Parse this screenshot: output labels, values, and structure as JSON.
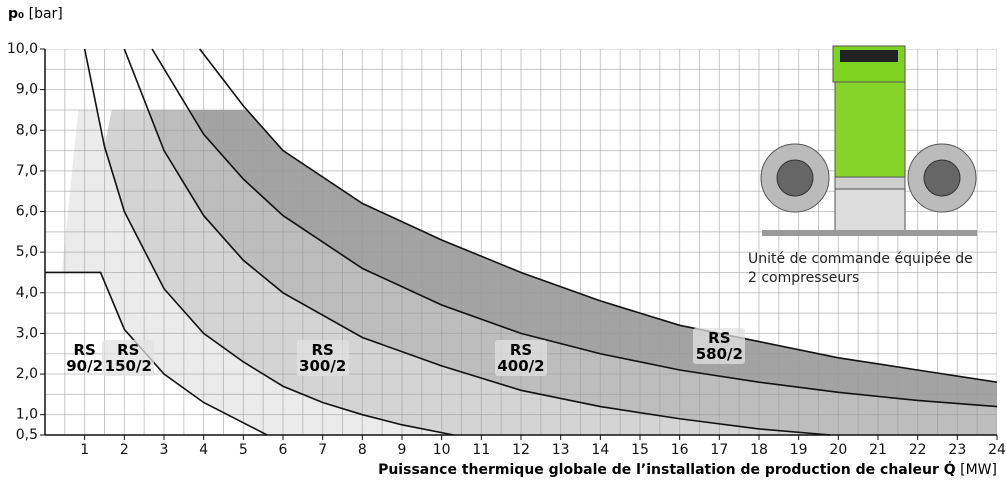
{
  "chart_data": {
    "type": "line",
    "ylabel": "p₀",
    "ylabel_unit": "[bar]",
    "xlabel": "Puissance thermique globale de l’installation de production de chaleur Q̇",
    "xlabel_unit": "[MW]",
    "caption": "Unité de commande équipée de 2 compresseurs",
    "xlim": [
      0,
      24
    ],
    "ylim": [
      0.5,
      10
    ],
    "xticks": [
      1,
      2,
      3,
      4,
      5,
      6,
      7,
      8,
      9,
      10,
      11,
      12,
      13,
      14,
      15,
      16,
      17,
      18,
      19,
      20,
      21,
      22,
      23,
      24
    ],
    "yticks": [
      {
        "value": 0.5,
        "label": "0,5"
      },
      {
        "value": 1,
        "label": "1,0"
      },
      {
        "value": 2,
        "label": "2,0"
      },
      {
        "value": 3,
        "label": "3,0"
      },
      {
        "value": 4,
        "label": "4,0"
      },
      {
        "value": 5,
        "label": "5,0"
      },
      {
        "value": 6,
        "label": "6,0"
      },
      {
        "value": 7,
        "label": "7,0"
      },
      {
        "value": 8,
        "label": "8,0"
      },
      {
        "value": 9,
        "label": "9,0"
      },
      {
        "value": 10,
        "label": "10,0"
      }
    ],
    "grid": true,
    "grid_step": 0.5,
    "shaded_limit": 8.5,
    "series": [
      {
        "name": "RS 580/2",
        "color": "#a3a3a3",
        "x": [
          3.9,
          5,
          6,
          8,
          10,
          12,
          14,
          16,
          18,
          20,
          22,
          24
        ],
        "values": [
          10,
          8.6,
          7.5,
          6.2,
          5.3,
          4.5,
          3.8,
          3.2,
          2.8,
          2.4,
          2.1,
          1.8
        ]
      },
      {
        "name": "RS 400/2",
        "color": "#bdbdbd",
        "x": [
          2.7,
          4,
          5,
          6,
          8,
          10,
          12,
          14,
          16,
          18,
          20,
          22,
          24
        ],
        "values": [
          10,
          7.9,
          6.8,
          5.9,
          4.6,
          3.7,
          3.0,
          2.5,
          2.1,
          1.8,
          1.55,
          1.35,
          1.2
        ]
      },
      {
        "name": "RS 300/2",
        "color": "#d4d4d4",
        "x": [
          2,
          3,
          4,
          5,
          6,
          8,
          10,
          12,
          14,
          16,
          18,
          19.8
        ],
        "values": [
          10,
          7.5,
          5.9,
          4.8,
          4.0,
          2.9,
          2.2,
          1.6,
          1.2,
          0.9,
          0.65,
          0.5
        ]
      },
      {
        "name": "RS 150/2",
        "color": "#ebebeb",
        "x": [
          1,
          1.5,
          2,
          3,
          4,
          5,
          6,
          7,
          8,
          9,
          10.3
        ],
        "values": [
          10,
          7.6,
          6.0,
          4.1,
          3.0,
          2.3,
          1.7,
          1.3,
          1.0,
          0.75,
          0.5
        ]
      },
      {
        "name": "RS 90/2",
        "color": "#ffffff",
        "x": [
          0,
          1.4,
          2,
          3,
          4,
          5,
          5.6
        ],
        "values": [
          4.5,
          4.5,
          3.1,
          2.0,
          1.3,
          0.8,
          0.5
        ]
      }
    ]
  }
}
